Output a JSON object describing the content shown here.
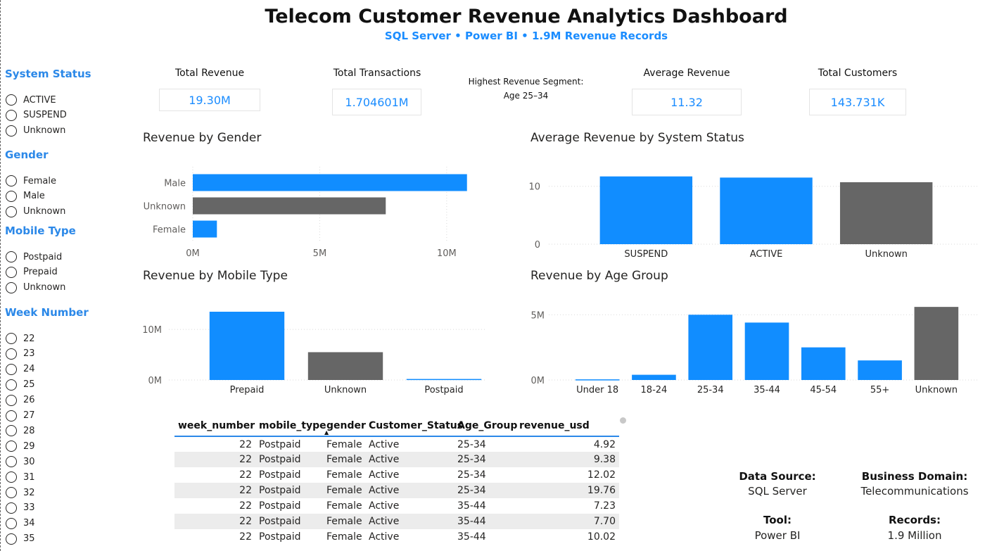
{
  "header": {
    "title": "Telecom Customer Revenue Analytics Dashboard",
    "subtitle": "SQL Server • Power BI • 1.9M Revenue Records"
  },
  "slicers": {
    "system_status": {
      "title": "System Status",
      "items": [
        "ACTIVE",
        "SUSPEND",
        "Unknown"
      ]
    },
    "gender": {
      "title": "Gender",
      "items": [
        "Female",
        "Male",
        "Unknown"
      ]
    },
    "mobile_type": {
      "title": "Mobile Type",
      "items": [
        "Postpaid",
        "Prepaid",
        "Unknown"
      ]
    },
    "week_number": {
      "title": "Week Number",
      "items": [
        "22",
        "23",
        "24",
        "25",
        "26",
        "27",
        "28",
        "29",
        "30",
        "31",
        "32",
        "33",
        "34",
        "35"
      ]
    }
  },
  "kpis": {
    "total_revenue": {
      "label": "Total Revenue",
      "value": "19.30M"
    },
    "total_transactions": {
      "label": "Total Transactions",
      "value": "1.704601M"
    },
    "highest_segment": {
      "line1": "Highest Revenue Segment:",
      "line2": "Age 25–34"
    },
    "average_revenue": {
      "label": "Average Revenue",
      "value": "11.32"
    },
    "total_customers": {
      "label": "Total Customers",
      "value": "143.731K"
    }
  },
  "colors": {
    "accent": "#118DFF",
    "gray": "#666666",
    "slicer_title": "#2B88E8"
  },
  "chart_data": [
    {
      "type": "bar",
      "orientation": "horizontal",
      "title": "Revenue by Gender",
      "categories": [
        "Male",
        "Unknown",
        "Female"
      ],
      "values": [
        10.8,
        7.6,
        0.95
      ],
      "colors": [
        "#118DFF",
        "#666666",
        "#118DFF"
      ],
      "xlim": [
        0,
        11.5
      ],
      "ticks": [
        0,
        5,
        10
      ],
      "tick_labels": [
        "0M",
        "5M",
        "10M"
      ]
    },
    {
      "type": "bar",
      "title": "Average Revenue by System Status",
      "categories": [
        "SUSPEND",
        "ACTIVE",
        "Unknown"
      ],
      "values": [
        11.7,
        11.5,
        10.7
      ],
      "colors": [
        "#118DFF",
        "#118DFF",
        "#666666"
      ],
      "ylim": [
        0,
        13
      ],
      "ticks": [
        0,
        10
      ],
      "tick_labels": [
        "0",
        "10"
      ]
    },
    {
      "type": "bar",
      "title": "Revenue by Mobile Type",
      "categories": [
        "Prepaid",
        "Unknown",
        "Postpaid"
      ],
      "values": [
        13.5,
        5.5,
        0.2
      ],
      "colors": [
        "#118DFF",
        "#666666",
        "#118DFF"
      ],
      "ylim": [
        0,
        16
      ],
      "ticks": [
        0,
        10
      ],
      "tick_labels": [
        "0M",
        "10M"
      ]
    },
    {
      "type": "bar",
      "title": "Revenue by Age Group",
      "categories": [
        "Under 18",
        "18-24",
        "25-34",
        "35-44",
        "45-54",
        "55+",
        "Unknown"
      ],
      "values": [
        0.05,
        0.4,
        5.0,
        4.4,
        2.5,
        1.5,
        5.6
      ],
      "colors": [
        "#118DFF",
        "#118DFF",
        "#118DFF",
        "#118DFF",
        "#118DFF",
        "#118DFF",
        "#666666"
      ],
      "ylim": [
        0,
        6.2
      ],
      "ticks": [
        0,
        5
      ],
      "tick_labels": [
        "0M",
        "5M"
      ]
    }
  ],
  "table": {
    "columns": [
      "week_number",
      "mobile_type",
      "gender",
      "Customer_Status",
      "Age_Group",
      "revenue_usd"
    ],
    "rows": [
      [
        "22",
        "Postpaid",
        "Female",
        "Active",
        "25-34",
        "4.92"
      ],
      [
        "22",
        "Postpaid",
        "Female",
        "Active",
        "25-34",
        "9.38"
      ],
      [
        "22",
        "Postpaid",
        "Female",
        "Active",
        "25-34",
        "12.02"
      ],
      [
        "22",
        "Postpaid",
        "Female",
        "Active",
        "25-34",
        "19.76"
      ],
      [
        "22",
        "Postpaid",
        "Female",
        "Active",
        "35-44",
        "7.23"
      ],
      [
        "22",
        "Postpaid",
        "Female",
        "Active",
        "35-44",
        "7.70"
      ],
      [
        "22",
        "Postpaid",
        "Female",
        "Active",
        "35-44",
        "10.02"
      ]
    ]
  },
  "info": {
    "data_source": {
      "label": "Data Source:",
      "value": "SQL Server"
    },
    "business_domain": {
      "label": "Business Domain:",
      "value": "Telecommunications"
    },
    "tool": {
      "label": "Tool:",
      "value": "Power BI"
    },
    "records": {
      "label": "Records:",
      "value": "1.9 Million"
    }
  }
}
